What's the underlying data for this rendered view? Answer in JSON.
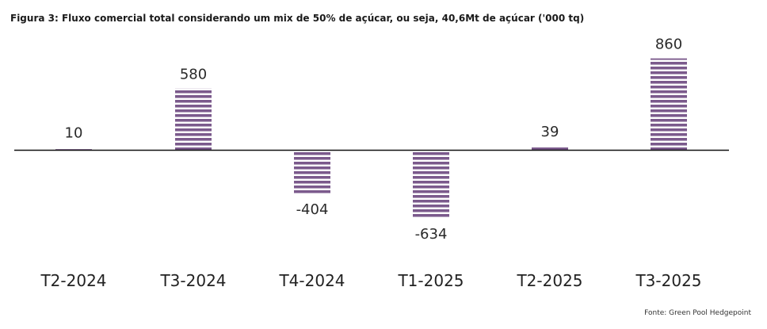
{
  "chart_data": {
    "type": "bar",
    "title": "Figura 3: Fluxo comercial total considerando um mix de 50% de açúcar, ou seja, 40,6Mt de açúcar ('000 tq)",
    "categories": [
      "T2-2024",
      "T3-2024",
      "T4-2024",
      "T1-2025",
      "T2-2025",
      "T3-2025"
    ],
    "values": [
      10,
      580,
      -404,
      -634,
      39,
      860
    ],
    "data_labels": [
      "10",
      "580",
      "-404",
      "-634",
      "39",
      "860"
    ],
    "ylim": [
      -700,
      900
    ],
    "grid": false,
    "bar_color": "#7b5a8c",
    "source": "Fonte: Green Pool Hedgepoint"
  }
}
